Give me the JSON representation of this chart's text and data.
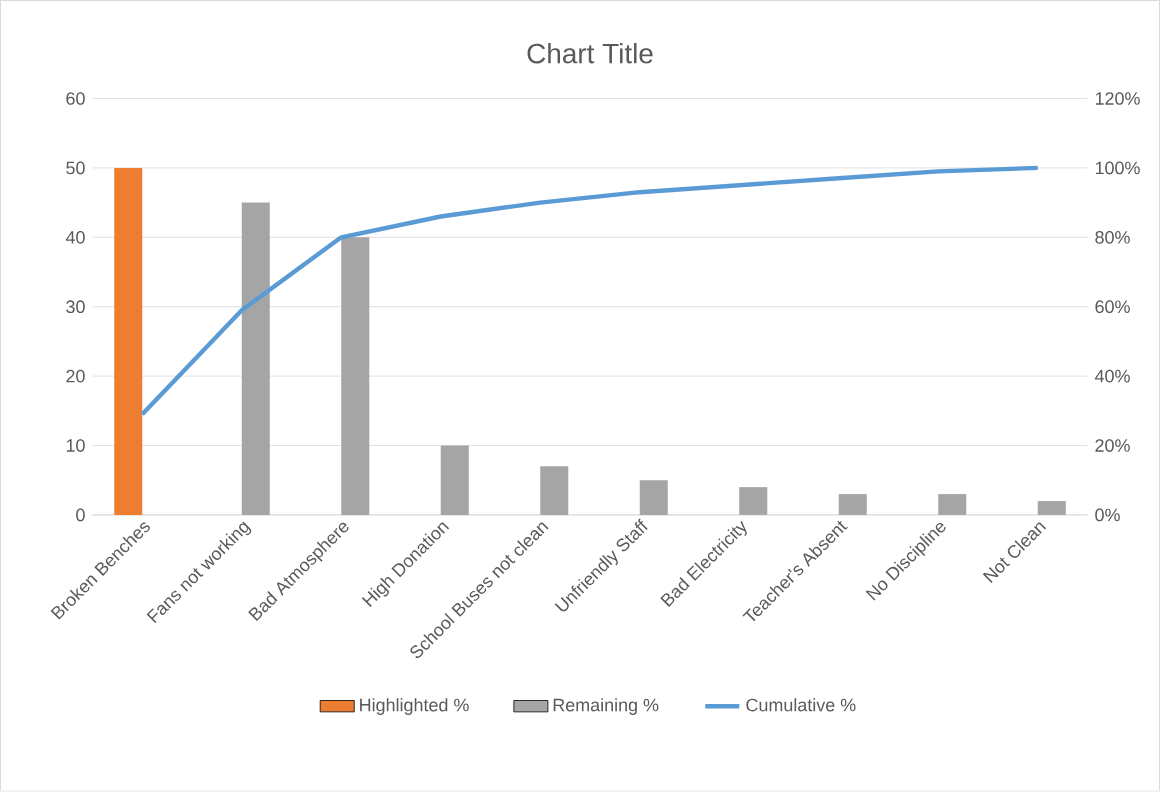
{
  "chart_data": {
    "type": "bar",
    "title": "Chart Title",
    "categories": [
      "Broken Benches",
      "Fans not working",
      "Bad Atmosphere",
      "High Donation",
      "School Buses not clean",
      "Unfriendly Staff",
      "Bad Electricity",
      "Teacher's Absent",
      "No Discipline",
      "Not Clean"
    ],
    "series": [
      {
        "name": "Highlighted %",
        "color": "#ed7d31",
        "values": [
          50,
          null,
          null,
          null,
          null,
          null,
          null,
          null,
          null,
          null
        ]
      },
      {
        "name": "Remaining %",
        "color": "#a5a5a5",
        "values": [
          null,
          45,
          40,
          10,
          7,
          5,
          4,
          3,
          3,
          2
        ]
      },
      {
        "name": "Cumulative %",
        "type": "line",
        "axis": "y2",
        "color": "#5b9bd5",
        "values": [
          29,
          59,
          80,
          86,
          90,
          93,
          95,
          97,
          99,
          100
        ]
      }
    ],
    "ylim": [
      0,
      60
    ],
    "yticks": [
      0,
      10,
      20,
      30,
      40,
      50,
      60
    ],
    "y2lim": [
      0,
      120
    ],
    "y2ticks": [
      {
        "value": 0,
        "label": "0%"
      },
      {
        "value": 20,
        "label": "20%"
      },
      {
        "value": 40,
        "label": "40%"
      },
      {
        "value": 60,
        "label": "60%"
      },
      {
        "value": 80,
        "label": "80%"
      },
      {
        "value": 100,
        "label": "100%"
      },
      {
        "value": 120,
        "label": "120%"
      }
    ],
    "grid": "y",
    "legend": "bottom"
  }
}
